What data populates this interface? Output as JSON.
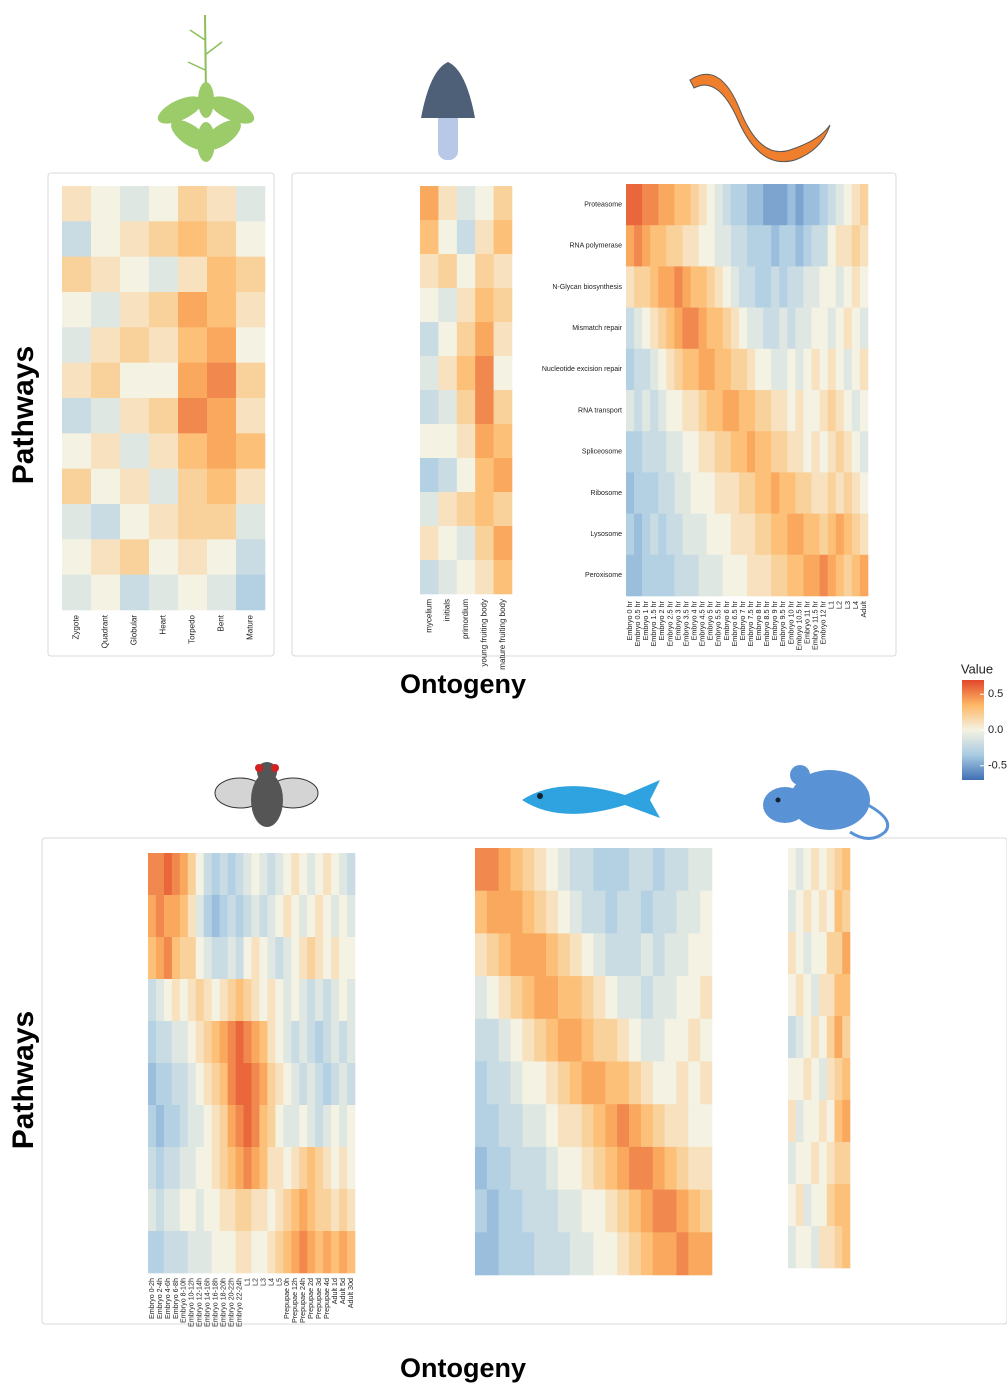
{
  "annotations": [
    "Pathways",
    "Ontogeny",
    "Pathways",
    "Ontogeny"
  ],
  "chart_data": [
    {
      "type": "heatmap",
      "columns": [
        "Zygote",
        "Quadrant",
        "Globular",
        "Heart",
        "Torpedo",
        "Bent",
        "Mature"
      ],
      "values": [
        [
          0.1,
          0.0,
          -0.1,
          0.0,
          0.2,
          0.1,
          -0.1
        ],
        [
          -0.2,
          0.0,
          0.1,
          0.2,
          0.3,
          0.2,
          0.0
        ],
        [
          0.2,
          0.1,
          0.0,
          -0.1,
          0.1,
          0.3,
          0.2
        ],
        [
          0.0,
          -0.1,
          0.1,
          0.2,
          0.4,
          0.3,
          0.1
        ],
        [
          -0.1,
          0.1,
          0.2,
          0.1,
          0.3,
          0.4,
          0.0
        ],
        [
          0.1,
          0.2,
          0.0,
          0.0,
          0.4,
          0.5,
          0.2
        ],
        [
          -0.2,
          -0.1,
          0.1,
          0.2,
          0.5,
          0.4,
          0.1
        ],
        [
          0.0,
          0.1,
          -0.1,
          0.1,
          0.3,
          0.4,
          0.3
        ],
        [
          0.2,
          0.0,
          0.1,
          -0.1,
          0.2,
          0.3,
          0.1
        ],
        [
          -0.1,
          -0.2,
          0.0,
          0.1,
          0.2,
          0.2,
          -0.1
        ],
        [
          0.0,
          0.1,
          0.2,
          0.0,
          0.1,
          0.0,
          -0.2
        ],
        [
          -0.1,
          0.0,
          -0.2,
          -0.1,
          0.0,
          -0.1,
          -0.3
        ]
      ]
    },
    {
      "type": "heatmap",
      "columns": [
        "mycelium",
        "initials",
        "primordium",
        "young fruiting body",
        "mature fruiting body"
      ],
      "values": [
        [
          0.4,
          0.1,
          -0.1,
          0.0,
          0.2
        ],
        [
          0.3,
          0.0,
          -0.2,
          0.1,
          0.3
        ],
        [
          0.1,
          0.2,
          0.0,
          0.2,
          0.1
        ],
        [
          0.0,
          -0.1,
          0.1,
          0.3,
          0.2
        ],
        [
          -0.2,
          0.0,
          0.2,
          0.4,
          0.1
        ],
        [
          -0.1,
          0.1,
          0.3,
          0.5,
          0.0
        ],
        [
          -0.2,
          -0.1,
          0.2,
          0.5,
          0.2
        ],
        [
          0.0,
          0.0,
          0.1,
          0.4,
          0.3
        ],
        [
          -0.3,
          -0.2,
          0.0,
          0.3,
          0.4
        ],
        [
          -0.1,
          0.1,
          0.2,
          0.3,
          0.2
        ],
        [
          0.1,
          0.0,
          -0.1,
          0.2,
          0.4
        ],
        [
          -0.2,
          -0.1,
          0.0,
          0.1,
          0.3
        ]
      ]
    },
    {
      "type": "heatmap",
      "rows": [
        "Proteasome",
        "RNA polymerase",
        "N-Glycan biosynthesis",
        "Mismatch repair",
        "Nucleotide excision repair",
        "RNA transport",
        "Spliceosome",
        "Ribosome",
        "Lysosome",
        "Peroxisome"
      ],
      "columns": [
        "Embryo 0 hr",
        "Embryo 0.5 hr",
        "Embryo 1 hr",
        "Embryo 1.5 hr",
        "Embryo 2 hr",
        "Embryo 2.5 hr",
        "Embryo 3 hr",
        "Embryo 3.5 hr",
        "Embryo 4 hr",
        "Embryo 4.5 hr",
        "Embryo 5 hr",
        "Embryo 5.5 hr",
        "Embryo 6 hr",
        "Embryo 6.5 hr",
        "Embryo 7 hr",
        "Embryo 7.5 hr",
        "Embryo 8 hr",
        "Embryo 8.5 hr",
        "Embryo 9 hr",
        "Embryo 9.5 hr",
        "Embryo 10 hr",
        "Embryo 10.5 hr",
        "Embryo 11 hr",
        "Embryo 11.5 hr",
        "Embryo 12 hr",
        "L1",
        "L2",
        "L3",
        "L4",
        "Adult"
      ],
      "values": [
        [
          0.6,
          0.6,
          0.5,
          0.5,
          0.4,
          0.4,
          0.3,
          0.3,
          0.2,
          0.1,
          0.0,
          -0.1,
          -0.2,
          -0.3,
          -0.3,
          -0.4,
          -0.4,
          -0.5,
          -0.5,
          -0.5,
          -0.4,
          -0.5,
          -0.4,
          -0.4,
          -0.3,
          -0.2,
          -0.1,
          0.0,
          0.1,
          0.2
        ],
        [
          0.4,
          0.5,
          0.4,
          0.3,
          0.3,
          0.2,
          0.2,
          0.1,
          0.1,
          0.0,
          0.0,
          -0.1,
          -0.1,
          -0.2,
          -0.2,
          -0.3,
          -0.3,
          -0.3,
          -0.4,
          -0.3,
          -0.3,
          -0.4,
          -0.3,
          -0.2,
          -0.2,
          0.0,
          0.1,
          0.1,
          0.2,
          0.1
        ],
        [
          0.1,
          0.2,
          0.2,
          0.3,
          0.4,
          0.4,
          0.5,
          0.4,
          0.3,
          0.3,
          0.2,
          0.1,
          0.0,
          -0.1,
          -0.2,
          -0.2,
          -0.3,
          -0.3,
          -0.2,
          -0.3,
          -0.2,
          -0.2,
          -0.1,
          -0.1,
          0.0,
          0.0,
          -0.1,
          0.0,
          0.1,
          0.0
        ],
        [
          -0.2,
          -0.1,
          0.0,
          0.1,
          0.2,
          0.3,
          0.4,
          0.5,
          0.5,
          0.4,
          0.3,
          0.3,
          0.2,
          0.1,
          0.0,
          -0.1,
          -0.1,
          -0.2,
          -0.2,
          -0.1,
          -0.2,
          -0.1,
          -0.1,
          0.0,
          0.0,
          -0.1,
          0.0,
          0.1,
          0.0,
          -0.1
        ],
        [
          -0.3,
          -0.2,
          -0.2,
          -0.1,
          0.0,
          0.1,
          0.2,
          0.3,
          0.3,
          0.4,
          0.4,
          0.3,
          0.3,
          0.2,
          0.2,
          0.1,
          0.0,
          0.0,
          -0.1,
          -0.1,
          0.0,
          -0.1,
          0.0,
          0.1,
          0.0,
          0.1,
          0.0,
          -0.1,
          0.0,
          0.1
        ],
        [
          -0.1,
          -0.2,
          -0.1,
          -0.2,
          -0.1,
          0.0,
          0.0,
          0.1,
          0.1,
          0.2,
          0.3,
          0.3,
          0.4,
          0.4,
          0.3,
          0.3,
          0.2,
          0.2,
          0.1,
          0.1,
          0.0,
          0.1,
          0.0,
          0.0,
          0.1,
          0.2,
          0.1,
          0.0,
          -0.1,
          0.0
        ],
        [
          -0.3,
          -0.3,
          -0.2,
          -0.2,
          -0.2,
          -0.1,
          -0.1,
          0.0,
          0.0,
          0.1,
          0.1,
          0.2,
          0.2,
          0.3,
          0.3,
          0.4,
          0.3,
          0.3,
          0.2,
          0.2,
          0.1,
          0.1,
          0.0,
          0.1,
          0.0,
          0.1,
          0.2,
          0.1,
          0.0,
          -0.1
        ],
        [
          -0.4,
          -0.3,
          -0.3,
          -0.3,
          -0.2,
          -0.2,
          -0.1,
          -0.1,
          0.0,
          0.0,
          0.0,
          0.1,
          0.1,
          0.1,
          0.2,
          0.2,
          0.3,
          0.3,
          0.4,
          0.3,
          0.3,
          0.2,
          0.2,
          0.1,
          0.1,
          0.2,
          0.1,
          0.2,
          0.1,
          0.0
        ],
        [
          -0.3,
          -0.4,
          -0.3,
          -0.2,
          -0.3,
          -0.2,
          -0.2,
          -0.1,
          -0.1,
          -0.1,
          0.0,
          0.0,
          0.0,
          0.1,
          0.1,
          0.1,
          0.2,
          0.2,
          0.3,
          0.3,
          0.4,
          0.4,
          0.3,
          0.3,
          0.2,
          0.3,
          0.4,
          0.3,
          0.2,
          0.1
        ],
        [
          -0.4,
          -0.4,
          -0.3,
          -0.3,
          -0.3,
          -0.3,
          -0.2,
          -0.2,
          -0.2,
          -0.1,
          -0.1,
          -0.1,
          0.0,
          0.0,
          0.0,
          0.1,
          0.1,
          0.1,
          0.2,
          0.2,
          0.3,
          0.3,
          0.4,
          0.4,
          0.5,
          0.4,
          0.3,
          0.2,
          0.3,
          0.4
        ]
      ]
    },
    {
      "type": "heatmap",
      "columns": [
        "Embryo 0-2h",
        "Embryo 2-4h",
        "Embryo 4-6h",
        "Embryo 6-8h",
        "Embryo 8-10h",
        "Embryo 10-12h",
        "Embryo 12-14h",
        "Embryo 14-16h",
        "Embryo 16-18h",
        "Embryo 18-20h",
        "Embryo 20-22h",
        "Embryo 22-24h",
        "L1",
        "L2",
        "L3",
        "L4",
        "L5",
        "Prepupae 0h",
        "Prepupae 12h",
        "Prepupae 24h",
        "Prepupae 2d",
        "Prepupae 3d",
        "Prepupae 4d",
        "Adult 1d",
        "Adult 5d",
        "Adult 30d"
      ],
      "values": [
        [
          0.5,
          0.5,
          0.6,
          0.5,
          0.4,
          0.2,
          0.0,
          -0.2,
          -0.3,
          -0.2,
          -0.3,
          -0.2,
          -0.1,
          0.0,
          -0.1,
          -0.2,
          -0.1,
          0.0,
          0.1,
          0.0,
          -0.1,
          0.0,
          0.1,
          0.0,
          -0.1,
          -0.2
        ],
        [
          0.4,
          0.5,
          0.4,
          0.4,
          0.3,
          0.1,
          -0.1,
          -0.3,
          -0.4,
          -0.3,
          -0.2,
          -0.3,
          -0.2,
          -0.1,
          -0.2,
          -0.1,
          0.0,
          0.1,
          0.0,
          -0.1,
          0.0,
          0.1,
          0.0,
          -0.1,
          0.0,
          -0.1
        ],
        [
          0.3,
          0.4,
          0.5,
          0.3,
          0.2,
          0.2,
          0.0,
          -0.1,
          -0.2,
          -0.2,
          -0.1,
          -0.2,
          0.0,
          0.1,
          0.0,
          -0.1,
          -0.2,
          -0.1,
          0.0,
          0.1,
          0.2,
          0.1,
          0.0,
          0.1,
          0.0,
          0.0
        ],
        [
          -0.2,
          -0.1,
          0.0,
          0.1,
          0.0,
          0.1,
          0.2,
          0.1,
          0.0,
          0.1,
          0.2,
          0.3,
          0.2,
          0.1,
          0.0,
          0.1,
          0.0,
          -0.1,
          0.0,
          -0.1,
          -0.2,
          -0.1,
          -0.2,
          -0.1,
          0.0,
          -0.1
        ],
        [
          -0.3,
          -0.2,
          -0.2,
          -0.1,
          -0.1,
          0.0,
          0.1,
          0.2,
          0.3,
          0.4,
          0.5,
          0.6,
          0.5,
          0.4,
          0.3,
          0.1,
          0.0,
          -0.1,
          -0.2,
          -0.1,
          -0.2,
          -0.3,
          -0.2,
          -0.1,
          -0.2,
          -0.1
        ],
        [
          -0.4,
          -0.3,
          -0.3,
          -0.2,
          -0.2,
          -0.1,
          0.0,
          0.1,
          0.2,
          0.3,
          0.5,
          0.6,
          0.6,
          0.5,
          0.4,
          0.2,
          0.1,
          0.0,
          -0.1,
          -0.2,
          -0.1,
          -0.2,
          -0.3,
          -0.2,
          -0.1,
          -0.2
        ],
        [
          -0.3,
          -0.4,
          -0.3,
          -0.3,
          -0.2,
          -0.1,
          -0.1,
          0.0,
          0.1,
          0.2,
          0.4,
          0.5,
          0.6,
          0.5,
          0.3,
          0.2,
          0.0,
          -0.1,
          -0.1,
          0.0,
          -0.1,
          -0.2,
          -0.1,
          0.0,
          -0.1,
          0.0
        ],
        [
          -0.2,
          -0.3,
          -0.2,
          -0.2,
          -0.1,
          -0.1,
          0.0,
          0.0,
          0.1,
          0.2,
          0.3,
          0.4,
          0.5,
          0.4,
          0.3,
          0.1,
          0.1,
          0.0,
          0.1,
          0.2,
          0.3,
          0.2,
          0.1,
          0.0,
          0.1,
          0.0
        ],
        [
          -0.1,
          -0.2,
          -0.1,
          -0.1,
          0.0,
          0.0,
          -0.1,
          0.0,
          0.0,
          0.1,
          0.1,
          0.2,
          0.2,
          0.1,
          0.1,
          0.0,
          0.1,
          0.2,
          0.3,
          0.4,
          0.3,
          0.2,
          0.2,
          0.1,
          0.2,
          0.1
        ],
        [
          -0.3,
          -0.3,
          -0.2,
          -0.2,
          -0.2,
          -0.1,
          -0.1,
          -0.1,
          0.0,
          0.0,
          0.0,
          0.1,
          0.1,
          0.0,
          0.0,
          0.1,
          0.2,
          0.3,
          0.4,
          0.5,
          0.4,
          0.3,
          0.4,
          0.3,
          0.4,
          0.3
        ]
      ]
    },
    {
      "type": "heatmap",
      "values": [
        [
          0.5,
          0.5,
          0.4,
          0.3,
          0.2,
          0.1,
          0.0,
          -0.1,
          -0.2,
          -0.2,
          -0.3,
          -0.3,
          -0.3,
          -0.2,
          -0.2,
          -0.3,
          -0.2,
          -0.2,
          -0.1,
          -0.1
        ],
        [
          0.3,
          0.4,
          0.4,
          0.4,
          0.3,
          0.2,
          0.1,
          0.0,
          -0.1,
          -0.2,
          -0.2,
          -0.3,
          -0.2,
          -0.2,
          -0.3,
          -0.2,
          -0.2,
          -0.1,
          -0.1,
          0.0
        ],
        [
          0.1,
          0.2,
          0.3,
          0.4,
          0.4,
          0.4,
          0.3,
          0.2,
          0.1,
          0.0,
          -0.1,
          -0.2,
          -0.2,
          -0.2,
          -0.1,
          -0.2,
          -0.1,
          -0.1,
          0.0,
          0.0
        ],
        [
          -0.1,
          0.0,
          0.1,
          0.2,
          0.3,
          0.4,
          0.4,
          0.3,
          0.3,
          0.2,
          0.1,
          0.0,
          -0.1,
          -0.1,
          -0.2,
          -0.1,
          -0.1,
          0.0,
          0.0,
          0.1
        ],
        [
          -0.2,
          -0.2,
          -0.1,
          0.0,
          0.1,
          0.2,
          0.3,
          0.4,
          0.4,
          0.3,
          0.2,
          0.2,
          0.1,
          0.0,
          -0.1,
          -0.1,
          0.0,
          0.0,
          0.1,
          0.0
        ],
        [
          -0.3,
          -0.2,
          -0.2,
          -0.1,
          0.0,
          0.0,
          0.1,
          0.2,
          0.3,
          0.4,
          0.4,
          0.3,
          0.3,
          0.2,
          0.1,
          0.0,
          0.0,
          0.1,
          0.0,
          0.1
        ],
        [
          -0.3,
          -0.3,
          -0.2,
          -0.2,
          -0.1,
          -0.1,
          0.0,
          0.1,
          0.1,
          0.2,
          0.3,
          0.4,
          0.5,
          0.4,
          0.3,
          0.2,
          0.1,
          0.1,
          0.0,
          0.0
        ],
        [
          -0.4,
          -0.3,
          -0.3,
          -0.2,
          -0.2,
          -0.2,
          -0.1,
          0.0,
          0.0,
          0.1,
          0.2,
          0.3,
          0.4,
          0.5,
          0.5,
          0.4,
          0.3,
          0.2,
          0.1,
          0.1
        ],
        [
          -0.3,
          -0.4,
          -0.3,
          -0.3,
          -0.2,
          -0.2,
          -0.2,
          -0.1,
          -0.1,
          0.0,
          0.0,
          0.1,
          0.2,
          0.3,
          0.4,
          0.5,
          0.5,
          0.4,
          0.3,
          0.2
        ],
        [
          -0.4,
          -0.4,
          -0.3,
          -0.3,
          -0.3,
          -0.2,
          -0.2,
          -0.2,
          -0.1,
          -0.1,
          0.0,
          0.0,
          0.1,
          0.2,
          0.3,
          0.4,
          0.4,
          0.5,
          0.4,
          0.4
        ]
      ]
    },
    {
      "type": "heatmap",
      "values": [
        [
          0.0,
          -0.1,
          0.0,
          0.1,
          0.0,
          0.1,
          0.2,
          0.3
        ],
        [
          -0.1,
          0.0,
          0.1,
          0.0,
          0.1,
          0.0,
          0.3,
          0.2
        ],
        [
          0.1,
          0.0,
          -0.1,
          0.0,
          0.0,
          0.2,
          0.2,
          0.4
        ],
        [
          0.0,
          0.1,
          0.0,
          -0.1,
          0.1,
          0.1,
          0.3,
          0.3
        ],
        [
          -0.2,
          -0.1,
          0.0,
          0.1,
          0.0,
          0.2,
          0.4,
          0.2
        ],
        [
          0.0,
          0.0,
          0.1,
          0.0,
          -0.1,
          0.1,
          0.2,
          0.3
        ],
        [
          0.1,
          -0.1,
          0.0,
          0.0,
          0.1,
          0.0,
          0.3,
          0.4
        ],
        [
          -0.1,
          0.0,
          0.0,
          0.1,
          0.0,
          0.1,
          0.2,
          0.2
        ],
        [
          0.0,
          0.1,
          -0.1,
          0.0,
          0.0,
          0.2,
          0.3,
          0.3
        ],
        [
          -0.1,
          0.0,
          0.0,
          -0.1,
          0.1,
          0.1,
          0.2,
          0.3
        ]
      ]
    },
    {
      "type": "colorbar",
      "title": "Value",
      "lim": [
        -0.7,
        0.7
      ],
      "ticks": [
        0.5,
        {
          "value": 0,
          "label": "0.0"
        },
        -0.5
      ],
      "colors": [
        "#3f6fb3",
        "#a9cbe3",
        "#f4f2e2",
        "#fdb866",
        "#e2472b"
      ]
    }
  ]
}
